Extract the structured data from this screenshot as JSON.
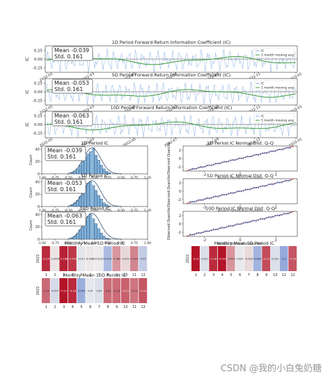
{
  "watermark": "CSDN @我的小白兔奶糖",
  "colors": {
    "ic_line": "#6a9bd8",
    "ma_line": "#3a9a3a",
    "hist_fill": "#7fb0d8",
    "qq_pts": "#4a6fb0",
    "qq_ref": "#d62728"
  },
  "chart_data": [
    {
      "type": "line",
      "title": "1D Period Forward Return Information Coefficient (IC)",
      "ylabel": "IC",
      "legend": [
        "IC",
        "1 month moving avg"
      ],
      "legend_position": "right",
      "stats": [
        "Mean -0.039",
        "Std. 0.161"
      ],
      "yticks": [
        "0.25",
        "0.00",
        "-0.25"
      ],
      "ylim": [
        -0.38,
        0.38
      ],
      "xticks": [
        "2022-01",
        "2022-03",
        "2022-05",
        "2022-07",
        "2022-09",
        "2022-11",
        "2023-01"
      ]
    },
    {
      "type": "line",
      "title": "5D Period Forward Return Information Coefficient (IC)",
      "ylabel": "IC",
      "legend": [
        "IC",
        "1 month moving avg"
      ],
      "legend_position": "right",
      "stats": [
        "Mean -0.053",
        "Std. 0.161"
      ],
      "yticks": [
        "0.25",
        "0.00",
        "-0.25"
      ],
      "ylim": [
        -0.38,
        0.38
      ],
      "xticks": [
        "2022-01",
        "2022-03",
        "2022-05",
        "2022-07",
        "2022-09",
        "2022-11",
        "2023-01"
      ]
    },
    {
      "type": "line",
      "title": "10D Period Forward Return Information Coefficient (IC)",
      "ylabel": "IC",
      "legend": [
        "IC",
        "1 month moving avg"
      ],
      "legend_position": "right",
      "stats": [
        "Mean -0.063",
        "Std. 0.161"
      ],
      "yticks": [
        "0.25",
        "0.00",
        "-0.25"
      ],
      "ylim": [
        -0.38,
        0.38
      ],
      "xticks": [
        "2022-01",
        "2022-03",
        "2022-05",
        "2022-07",
        "2022-09",
        "2022-11",
        "2023-01"
      ]
    },
    {
      "type": "bar",
      "title": "1D Period IC",
      "ylabel": "Count",
      "stats": [
        "Mean -0.039",
        "Std. 0.161"
      ],
      "xticks": [
        "-1.00",
        "-0.75",
        "-0.50",
        "-0.25",
        "0.00",
        "0.25",
        "0.50",
        "0.75",
        "1.00"
      ],
      "yticks": [
        "0",
        "20",
        "40"
      ],
      "xlim": [
        -1,
        1
      ],
      "ylim": [
        0,
        45
      ],
      "bin_start": -0.45,
      "bin_width": 0.05,
      "values": [
        2,
        4,
        8,
        14,
        20,
        28,
        32,
        36,
        42,
        30,
        22,
        14,
        8,
        4,
        2
      ]
    },
    {
      "type": "bar",
      "title": "5D Period IC",
      "ylabel": "Count",
      "stats": [
        "Mean -0.053",
        "Std. 0.161"
      ],
      "xticks": [
        "-1.00",
        "-0.75",
        "-0.50",
        "-0.25",
        "0.00",
        "0.25",
        "0.50",
        "0.75",
        "1.00"
      ],
      "yticks": [
        "0",
        "20",
        "40"
      ],
      "xlim": [
        -1,
        1
      ],
      "ylim": [
        0,
        45
      ],
      "bin_start": -0.45,
      "bin_width": 0.05,
      "values": [
        3,
        6,
        10,
        16,
        24,
        32,
        38,
        40,
        34,
        26,
        18,
        12,
        6,
        3,
        1
      ]
    },
    {
      "type": "bar",
      "title": "10D Period IC",
      "ylabel": "Count",
      "stats": [
        "Mean -0.063",
        "Std. 0.161"
      ],
      "xticks": [
        "-1.00",
        "-0.75",
        "-0.50",
        "-0.25",
        "0.00",
        "0.25",
        "0.50",
        "0.75",
        "1.00"
      ],
      "yticks": [
        "0",
        "20",
        "40"
      ],
      "xlim": [
        -1,
        1
      ],
      "ylim": [
        0,
        45
      ],
      "bin_start": -0.45,
      "bin_width": 0.05,
      "values": [
        2,
        5,
        9,
        15,
        22,
        30,
        37,
        41,
        33,
        25,
        17,
        10,
        5,
        2,
        1
      ]
    },
    {
      "type": "scatter",
      "title": "1D Period IC Normal Dist. Q-Q",
      "ylabel": "Observed Quantile",
      "xlabel": "Normal Distribution Quantile",
      "xticks": [
        "-2",
        "0",
        "2"
      ],
      "yticks": [
        "-2",
        "0",
        "2"
      ],
      "xlim": [
        -3.2,
        3.2
      ],
      "ylim": [
        -3,
        3
      ]
    },
    {
      "type": "scatter",
      "title": "5D Period IC Normal Dist. Q-Q",
      "ylabel": "Observed Quantile",
      "xlabel": "Normal Distribution Quantile",
      "xticks": [
        "-2",
        "0",
        "2"
      ],
      "yticks": [
        "-2",
        "0",
        "2"
      ],
      "xlim": [
        -3.2,
        3.2
      ],
      "ylim": [
        -3,
        3
      ]
    },
    {
      "type": "scatter",
      "title": "10D Period IC Normal Dist. Q-Q",
      "ylabel": "Observed Quantile",
      "xlabel": "Normal Distribution Quantile",
      "xticks": [
        "-2",
        "0",
        "2"
      ],
      "yticks": [
        "-2",
        "0",
        "2"
      ],
      "xlim": [
        -3.2,
        3.2
      ],
      "ylim": [
        -3,
        3
      ]
    },
    {
      "type": "heatmap",
      "title": "Monthly Mean 1D Period IC",
      "row_label": "2022",
      "months": [
        "1",
        "2",
        "3",
        "4",
        "5",
        "6",
        "7",
        "8",
        "9",
        "10",
        "11",
        "12"
      ],
      "values": [
        "-0.179",
        "-0.0096",
        "-0.188",
        "-0.167",
        "0.011",
        "-0.0068",
        "-0.0035",
        "0.075",
        "-0.081",
        "-0.021",
        "-0.095",
        "0.05"
      ]
    },
    {
      "type": "heatmap",
      "title": "Monthly Mean 5D Period IC",
      "row_label": "2022",
      "months": [
        "1",
        "2",
        "3",
        "4",
        "5",
        "6",
        "7",
        "8",
        "9",
        "10",
        "11",
        "12"
      ],
      "values": [
        "-0.21",
        "0.021",
        "-0.18",
        "-0.252",
        "-0.081",
        "0.007",
        "-0.018",
        "0.084",
        "-0.15",
        "0.021",
        "0.1",
        "-0.14"
      ]
    },
    {
      "type": "heatmap",
      "title": "Monthly Mean 10D Period IC",
      "row_label": "2022",
      "months": [
        "1",
        "2",
        "3",
        "4",
        "5",
        "6",
        "7",
        "8",
        "9",
        "10",
        "11",
        "12"
      ],
      "values": [
        "-0.12",
        "0.027",
        "-0.21",
        "-0.18",
        "0.093",
        "0.01",
        "0.02",
        "-0.12",
        "-0.12",
        "-0.13",
        "-0.11",
        "-0.14"
      ]
    }
  ]
}
